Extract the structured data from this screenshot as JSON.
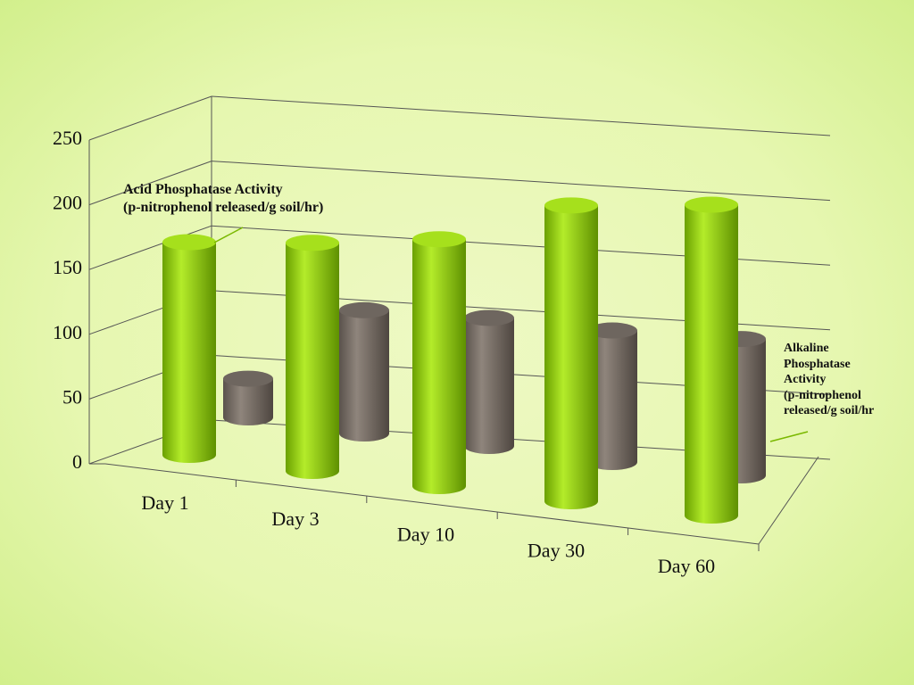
{
  "chart_data": {
    "type": "bar3d",
    "categories": [
      "Day 1",
      "Day 3",
      "Day 10",
      "Day 30",
      "Day 60"
    ],
    "series": [
      {
        "name": "Acid Phosphatase Activity\n(p-nitrophenol released/g soil/hr)",
        "color": "#8fd000",
        "values": [
          159,
          165,
          173,
          201,
          205
        ]
      },
      {
        "name": "Alkaline\nPhosphatase\nActivity\n(p-nitrophenol\nreleased/g soil/hr",
        "color": "#7a7068",
        "values": [
          31,
          96,
          97,
          97,
          98
        ]
      }
    ],
    "ylim": [
      0,
      250
    ],
    "yticks": [
      0,
      50,
      100,
      150,
      200,
      250
    ],
    "grid": true
  }
}
